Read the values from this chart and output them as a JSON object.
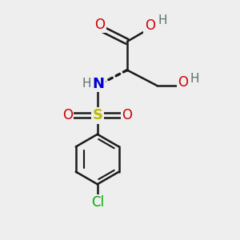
{
  "bg_color": "#eeeeee",
  "bond_color": "#1a1a1a",
  "bond_width": 1.8,
  "atom_colors": {
    "O": "#cc0000",
    "N": "#0000cc",
    "S": "#bbbb00",
    "Cl": "#00aa00",
    "H": "#607070",
    "C": "#1a1a1a"
  },
  "fig_size": [
    3.0,
    3.0
  ],
  "dpi": 100
}
